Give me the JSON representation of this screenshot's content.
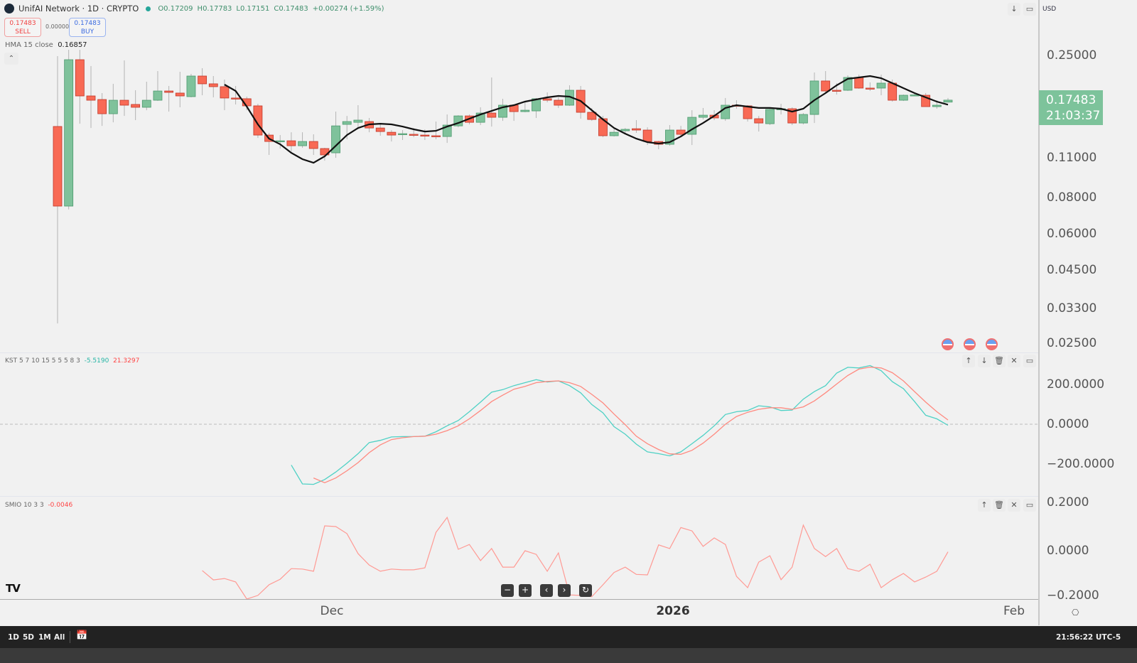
{
  "header": {
    "title": "UnifAI Network · 1D · CRYPTO",
    "open": "O0.17209",
    "high": "H0.17783",
    "low": "L0.17151",
    "close": "C0.17483",
    "change": "+0.00274 (+1.59%)"
  },
  "trade": {
    "sell_price": "0.17483",
    "sell_label": "SELL",
    "spread": "0.00000",
    "buy_price": "0.17483",
    "buy_label": "BUY"
  },
  "hma_legend": {
    "label": "HMA 15 close",
    "value": "0.16857"
  },
  "kst_legend": {
    "label": "KST 5 7 10 15 5 5 5 8 3",
    "kst": "-5.5190",
    "signal": "21.3297"
  },
  "smio_legend": {
    "label": "SMIO 10 3 3",
    "value": "-0.0046"
  },
  "currency": "USD",
  "price_tag": {
    "price": "0.17483",
    "countdown": "21:03:37"
  },
  "price_axis": [
    {
      "v": 0.25,
      "t": "0.25000"
    },
    {
      "v": 0.11,
      "t": "0.11000"
    },
    {
      "v": 0.08,
      "t": "0.08000"
    },
    {
      "v": 0.06,
      "t": "0.06000"
    },
    {
      "v": 0.045,
      "t": "0.04500"
    },
    {
      "v": 0.033,
      "t": "0.03300"
    },
    {
      "v": 0.025,
      "t": "0.02500"
    }
  ],
  "kst_axis": [
    {
      "v": 200,
      "t": "200.0000"
    },
    {
      "v": 0,
      "t": "0.0000"
    },
    {
      "v": -200,
      "t": "−200.0000"
    }
  ],
  "smio_axis": [
    {
      "v": 0.2,
      "t": "0.2000"
    },
    {
      "v": 0,
      "t": "0.0000"
    },
    {
      "v": -0.2,
      "t": "−0.2000"
    }
  ],
  "time_axis": [
    {
      "t": "Dec",
      "bold": false
    },
    {
      "t": "2026",
      "bold": true
    },
    {
      "t": "Feb",
      "bold": false
    }
  ],
  "ranges": [
    "1D",
    "5D",
    "1M",
    "All"
  ],
  "clock": "21:56:22 UTC-5",
  "colors": {
    "up": "#7fc29b",
    "down": "#f86a55",
    "hma": "#111111",
    "kst": "#4fd1c5",
    "signal": "#ff8a80",
    "smio": "#ff9a94"
  },
  "chart_data": {
    "type": "candlestick",
    "symbol": "UnifAI Network",
    "interval": "1D",
    "scale": "log",
    "ylim": [
      0.025,
      0.27
    ],
    "candles": [
      [
        0.1416,
        0.2486,
        0.0293,
        0.0749
      ],
      [
        0.0749,
        0.2616,
        0.0729,
        0.2416
      ],
      [
        0.2416,
        0.2616,
        0.1448,
        0.1808
      ],
      [
        0.1808,
        0.2296,
        0.1399,
        0.1747
      ],
      [
        0.1757,
        0.185,
        0.1423,
        0.1568
      ],
      [
        0.1568,
        0.1992,
        0.1464,
        0.1747
      ],
      [
        0.1747,
        0.2402,
        0.1541,
        0.1679
      ],
      [
        0.1689,
        0.1892,
        0.149,
        0.1651
      ],
      [
        0.1651,
        0.2026,
        0.1613,
        0.1747
      ],
      [
        0.1747,
        0.2206,
        0.1737,
        0.1881
      ],
      [
        0.1881,
        0.1958,
        0.1595,
        0.186
      ],
      [
        0.185,
        0.2193,
        0.1651,
        0.1808
      ],
      [
        0.1798,
        0.2157,
        0.1788,
        0.212
      ],
      [
        0.212,
        0.2257,
        0.1818,
        0.1992
      ],
      [
        0.1992,
        0.212,
        0.1788,
        0.1947
      ],
      [
        0.1947,
        0.2061,
        0.1613,
        0.1778
      ],
      [
        0.1778,
        0.1958,
        0.1689,
        0.1768
      ],
      [
        0.1768,
        0.1798,
        0.1613,
        0.167
      ],
      [
        0.167,
        0.1698,
        0.1292,
        0.1322
      ],
      [
        0.1322,
        0.1345,
        0.1128,
        0.1256
      ],
      [
        0.1256,
        0.1322,
        0.1187,
        0.1263
      ],
      [
        0.1263,
        0.1352,
        0.116,
        0.1214
      ],
      [
        0.1214,
        0.1352,
        0.1194,
        0.1256
      ],
      [
        0.1256,
        0.133,
        0.1128,
        0.1187
      ],
      [
        0.1187,
        0.1194,
        0.1077,
        0.1128
      ],
      [
        0.1147,
        0.1595,
        0.1102,
        0.1423
      ],
      [
        0.144,
        0.1541,
        0.1278,
        0.1473
      ],
      [
        0.1464,
        0.1679,
        0.1384,
        0.149
      ],
      [
        0.1473,
        0.1516,
        0.1352,
        0.1399
      ],
      [
        0.1399,
        0.144,
        0.1315,
        0.136
      ],
      [
        0.1352,
        0.1376,
        0.1256,
        0.1322
      ],
      [
        0.133,
        0.1376,
        0.1271,
        0.1337
      ],
      [
        0.133,
        0.1399,
        0.13,
        0.1322
      ],
      [
        0.1322,
        0.1384,
        0.1271,
        0.1315
      ],
      [
        0.1315,
        0.1473,
        0.1278,
        0.1311
      ],
      [
        0.1307,
        0.1559,
        0.1242,
        0.1432
      ],
      [
        0.1423,
        0.155,
        0.1407,
        0.1541
      ],
      [
        0.1541,
        0.1559,
        0.144,
        0.1464
      ],
      [
        0.1464,
        0.1651,
        0.1432,
        0.1577
      ],
      [
        0.1577,
        0.2096,
        0.1415,
        0.1524
      ],
      [
        0.1524,
        0.1768,
        0.1481,
        0.1679
      ],
      [
        0.1679,
        0.1679,
        0.1481,
        0.1595
      ],
      [
        0.1595,
        0.1737,
        0.1586,
        0.1613
      ],
      [
        0.1604,
        0.1778,
        0.1516,
        0.1768
      ],
      [
        0.1768,
        0.186,
        0.1718,
        0.1747
      ],
      [
        0.1747,
        0.1788,
        0.1642,
        0.1679
      ],
      [
        0.1679,
        0.1969,
        0.167,
        0.1892
      ],
      [
        0.1892,
        0.1958,
        0.1507,
        0.1586
      ],
      [
        0.1586,
        0.1642,
        0.1481,
        0.1498
      ],
      [
        0.1507,
        0.1541,
        0.13,
        0.1315
      ],
      [
        0.1315,
        0.1399,
        0.1307,
        0.1352
      ],
      [
        0.1368,
        0.1399,
        0.1337,
        0.1384
      ],
      [
        0.1391,
        0.149,
        0.1345,
        0.1376
      ],
      [
        0.1376,
        0.1407,
        0.1221,
        0.1256
      ],
      [
        0.1256,
        0.1263,
        0.118,
        0.1228
      ],
      [
        0.1228,
        0.1432,
        0.1214,
        0.1376
      ],
      [
        0.1376,
        0.1423,
        0.1307,
        0.133
      ],
      [
        0.133,
        0.1613,
        0.1221,
        0.1524
      ],
      [
        0.1524,
        0.1642,
        0.1498,
        0.155
      ],
      [
        0.155,
        0.1613,
        0.149,
        0.1516
      ],
      [
        0.1507,
        0.1778,
        0.1481,
        0.1679
      ],
      [
        0.1679,
        0.1747,
        0.1632,
        0.167
      ],
      [
        0.167,
        0.1679,
        0.1473,
        0.1507
      ],
      [
        0.1507,
        0.1541,
        0.136,
        0.1456
      ],
      [
        0.1448,
        0.1642,
        0.1432,
        0.1623
      ],
      [
        0.1623,
        0.1698,
        0.1559,
        0.1632
      ],
      [
        0.1632,
        0.1651,
        0.1432,
        0.1456
      ],
      [
        0.1456,
        0.1577,
        0.144,
        0.1559
      ],
      [
        0.1559,
        0.2181,
        0.1456,
        0.2038
      ],
      [
        0.2038,
        0.2206,
        0.185,
        0.1881
      ],
      [
        0.1892,
        0.2003,
        0.1828,
        0.1886
      ],
      [
        0.1892,
        0.2132,
        0.1881,
        0.2096
      ],
      [
        0.2096,
        0.2144,
        0.1914,
        0.1925
      ],
      [
        0.1925,
        0.2015,
        0.1881,
        0.192
      ],
      [
        0.1925,
        0.2144,
        0.1818,
        0.2003
      ],
      [
        0.2003,
        0.2061,
        0.1728,
        0.1747
      ],
      [
        0.1747,
        0.1828,
        0.1737,
        0.1818
      ],
      [
        0.1818,
        0.186,
        0.1808,
        0.1823
      ],
      [
        0.1818,
        0.185,
        0.166,
        0.166
      ],
      [
        0.166,
        0.1747,
        0.1632,
        0.1679
      ],
      [
        0.17209,
        0.17783,
        0.17151,
        0.17483
      ]
    ],
    "hma": [
      0.198,
      0.1881,
      0.166,
      0.144,
      0.1285,
      0.1228,
      0.1147,
      0.109,
      0.1059,
      0.1115,
      0.1214,
      0.1322,
      0.1399,
      0.144,
      0.1448,
      0.144,
      0.1415,
      0.1384,
      0.136,
      0.1368,
      0.1415,
      0.1456,
      0.1507,
      0.1559,
      0.1604,
      0.1651,
      0.1679,
      0.1728,
      0.1757,
      0.1788,
      0.1808,
      0.1798,
      0.1737,
      0.1613,
      0.1498,
      0.1399,
      0.1337,
      0.1285,
      0.1249,
      0.1235,
      0.1249,
      0.1307,
      0.1384,
      0.1456,
      0.1541,
      0.1642,
      0.1679,
      0.166,
      0.1642,
      0.1642,
      0.1632,
      0.1595,
      0.1632,
      0.1747,
      0.185,
      0.1969,
      0.2073,
      0.2096,
      0.212,
      0.2084,
      0.2003,
      0.1925,
      0.185,
      0.1788,
      0.1728,
      0.16857
    ],
    "kst": [
      -205,
      -300,
      -302,
      -278,
      -240,
      -196,
      -148,
      -92,
      -81,
      -64,
      -62,
      -62,
      -60,
      -38,
      -8,
      19,
      63,
      111,
      161,
      174,
      194,
      209,
      224,
      212,
      218,
      194,
      158,
      99,
      57,
      -12,
      -50,
      -100,
      -139,
      -148,
      -159,
      -139,
      -98,
      -56,
      -8,
      49,
      63,
      69,
      93,
      87,
      69,
      71,
      126,
      164,
      194,
      257,
      286,
      283,
      295,
      269,
      214,
      179,
      114,
      45,
      27,
      -5.519
    ],
    "kst_signal": [
      -270,
      -294,
      -270,
      -234,
      -193,
      -143,
      -104,
      -77,
      -68,
      -62,
      -60,
      -50,
      -32,
      -8,
      27,
      69,
      114,
      146,
      176,
      190,
      209,
      215,
      218,
      209,
      190,
      150,
      107,
      51,
      -2,
      -60,
      -98,
      -127,
      -149,
      -151,
      -131,
      -95,
      -50,
      0,
      39,
      60,
      75,
      83,
      83,
      75,
      87,
      117,
      158,
      202,
      245,
      277,
      287,
      283,
      259,
      218,
      164,
      111,
      63,
      21.3297
    ],
    "smio": [
      -0.082,
      -0.121,
      -0.115,
      -0.129,
      -0.2,
      -0.185,
      -0.141,
      -0.118,
      -0.074,
      -0.076,
      -0.085,
      0.103,
      0.1,
      0.071,
      -0.012,
      -0.059,
      -0.085,
      -0.076,
      -0.079,
      -0.079,
      -0.071,
      0.076,
      0.138,
      0.006,
      0.026,
      -0.041,
      0.009,
      -0.068,
      -0.068,
      0,
      -0.015,
      -0.085,
      -0.009,
      -0.183,
      -0.185,
      -0.19,
      -0.141,
      -0.09,
      -0.068,
      -0.098,
      -0.1,
      0.024,
      0.009,
      0.096,
      0.082,
      0.018,
      0.053,
      0.026,
      -0.106,
      -0.153,
      -0.047,
      -0.021,
      -0.12,
      -0.068,
      0.106,
      0.009,
      -0.024,
      0.009,
      -0.074,
      -0.085,
      -0.056,
      -0.153,
      -0.12,
      -0.094,
      -0.129,
      -0.109,
      -0.085,
      -0.0046
    ],
    "kst_ylim": [
      -320,
      320
    ],
    "smio_ylim": [
      -0.2,
      0.2
    ]
  }
}
